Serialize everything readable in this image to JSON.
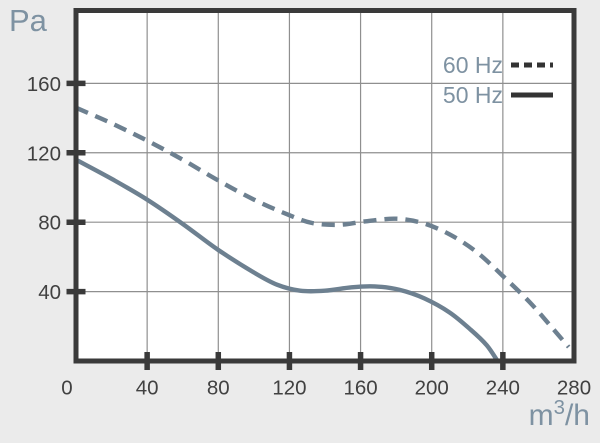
{
  "chart_data": {
    "type": "line",
    "title": "",
    "ylabel": "Pa",
    "xlabel": "m³/h",
    "xlabel_parts": {
      "pre": "m",
      "sup": "3",
      "post": "/h"
    },
    "xlim": [
      0,
      280
    ],
    "ylim": [
      0,
      202
    ],
    "x_ticks": [
      0,
      40,
      80,
      120,
      160,
      200,
      240,
      280
    ],
    "y_ticks": [
      40,
      80,
      120,
      160
    ],
    "grid": true,
    "legend_position": "top-right",
    "series": [
      {
        "name": "60 Hz",
        "style": "dashed",
        "points": [
          [
            0,
            146
          ],
          [
            20,
            137
          ],
          [
            40,
            127
          ],
          [
            60,
            116
          ],
          [
            80,
            104
          ],
          [
            100,
            93
          ],
          [
            120,
            84
          ],
          [
            133,
            79.5
          ],
          [
            148,
            78.5
          ],
          [
            163,
            80.5
          ],
          [
            180,
            82
          ],
          [
            195,
            79.5
          ],
          [
            210,
            73
          ],
          [
            225,
            63
          ],
          [
            240,
            49
          ],
          [
            255,
            34
          ],
          [
            267,
            20
          ],
          [
            277,
            8
          ]
        ]
      },
      {
        "name": "50 Hz",
        "style": "solid",
        "points": [
          [
            0,
            116
          ],
          [
            20,
            105
          ],
          [
            40,
            93
          ],
          [
            60,
            79
          ],
          [
            80,
            64
          ],
          [
            100,
            51
          ],
          [
            113,
            44
          ],
          [
            126,
            40.5
          ],
          [
            140,
            40.5
          ],
          [
            155,
            42.5
          ],
          [
            168,
            43
          ],
          [
            182,
            41
          ],
          [
            196,
            36
          ],
          [
            210,
            28
          ],
          [
            222,
            18
          ],
          [
            231,
            9
          ],
          [
            237,
            0
          ]
        ]
      }
    ]
  },
  "colors": {
    "page_bg": "#ebebeb",
    "plot_bg": "#ffffff",
    "frame": "#3a3a3a",
    "grid": "#8f8f8f",
    "curve": "#6d8090",
    "tick_text": "#414141",
    "unit_text": "#7e92a2",
    "legend_sample": "#333333"
  }
}
